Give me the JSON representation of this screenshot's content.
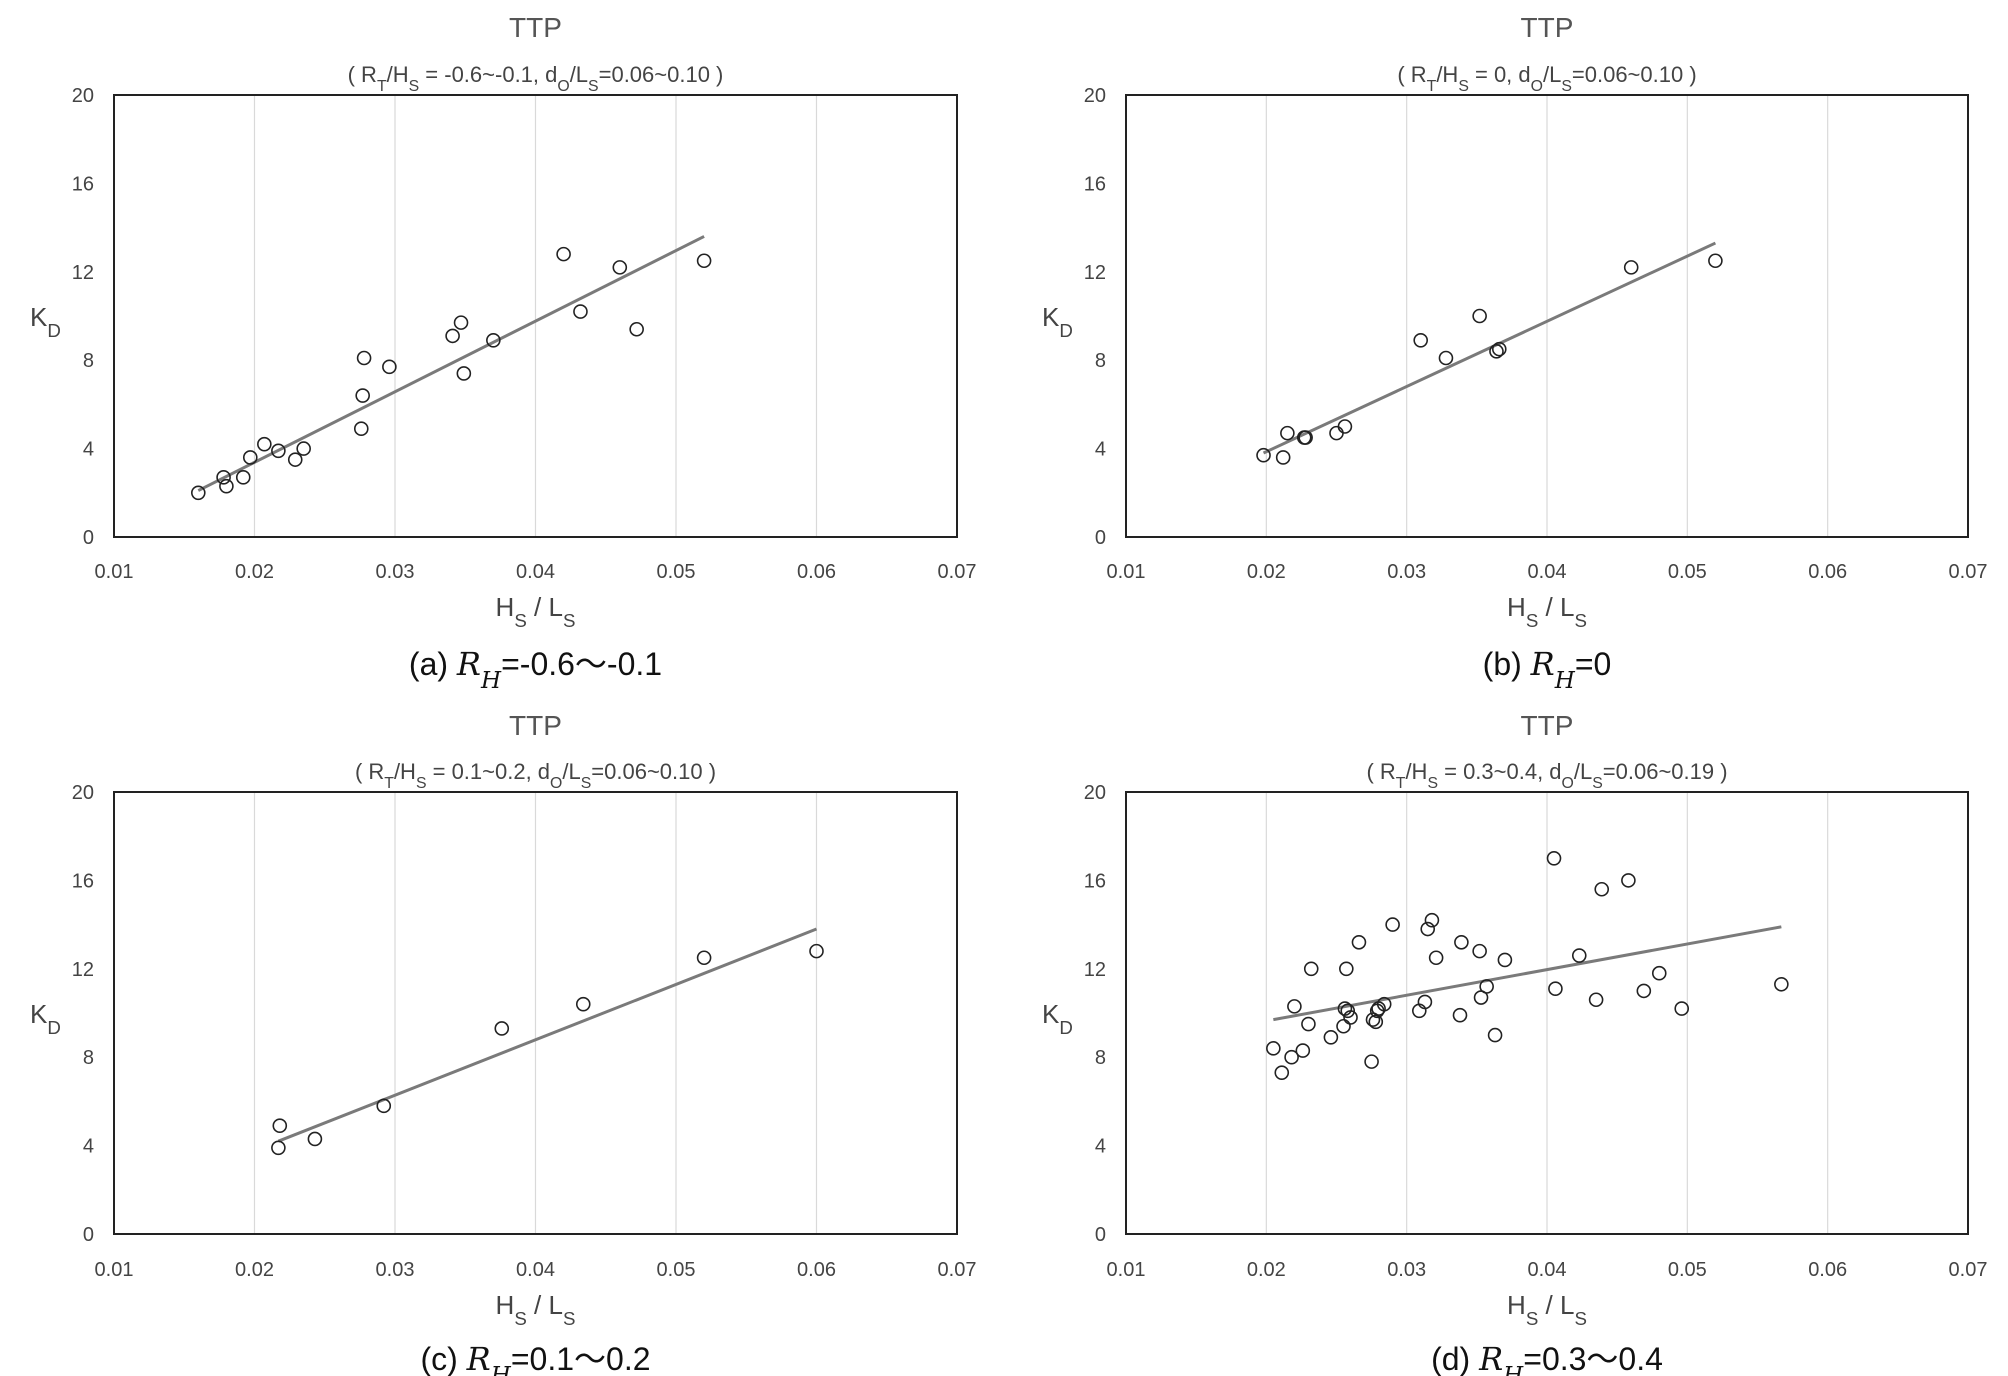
{
  "chart_data": [
    {
      "type": "scatter",
      "title": "TTP",
      "subtitle": {
        "open": "( R",
        "a_sub": "T",
        "b": "/H",
        "b_sub": "S",
        "c": " = -0.6~-0.1, d",
        "c_sub": "O",
        "d": "/L",
        "d_sub": "S",
        "e": "=0.06~0.10 )"
      },
      "xlabel": {
        "a": "H",
        "a_sub": "S",
        "b": " / L",
        "b_sub": "S"
      },
      "ylabel": {
        "a": "K",
        "a_sub": "D"
      },
      "caption": {
        "pre": "(a) ",
        "var": "R",
        "var_sub": "H",
        "post": "=-0.6～-0.1"
      },
      "xlim": [
        0.01,
        0.07
      ],
      "ylim": [
        0,
        20
      ],
      "x_ticks": [
        "0.01",
        "0.02",
        "0.03",
        "0.04",
        "0.05",
        "0.06",
        "0.07"
      ],
      "y_ticks": [
        "0",
        "4",
        "8",
        "12",
        "16",
        "20"
      ],
      "grid": "vertical",
      "points": [
        [
          0.016,
          2.0
        ],
        [
          0.0178,
          2.7
        ],
        [
          0.018,
          2.3
        ],
        [
          0.0192,
          2.7
        ],
        [
          0.0197,
          3.6
        ],
        [
          0.0207,
          4.2
        ],
        [
          0.0217,
          3.9
        ],
        [
          0.0229,
          3.5
        ],
        [
          0.0235,
          4.0
        ],
        [
          0.0276,
          4.9
        ],
        [
          0.0277,
          6.4
        ],
        [
          0.0278,
          8.1
        ],
        [
          0.0296,
          7.7
        ],
        [
          0.0341,
          9.1
        ],
        [
          0.0347,
          9.7
        ],
        [
          0.0349,
          7.4
        ],
        [
          0.037,
          8.9
        ],
        [
          0.042,
          12.8
        ],
        [
          0.0432,
          10.2
        ],
        [
          0.046,
          12.2
        ],
        [
          0.0472,
          9.4
        ],
        [
          0.052,
          12.5
        ]
      ],
      "trendline": [
        [
          0.016,
          2.1
        ],
        [
          0.052,
          13.6
        ]
      ]
    },
    {
      "type": "scatter",
      "title": "TTP",
      "subtitle": {
        "open": "( R",
        "a_sub": "T",
        "b": "/H",
        "b_sub": "S",
        "c": " = 0, d",
        "c_sub": "O",
        "d": "/L",
        "d_sub": "S",
        "e": "=0.06~0.10 )"
      },
      "xlabel": {
        "a": "H",
        "a_sub": "S",
        "b": " / L",
        "b_sub": "S"
      },
      "ylabel": {
        "a": "K",
        "a_sub": "D"
      },
      "caption": {
        "pre": "(b) ",
        "var": "R",
        "var_sub": "H",
        "post": "=0"
      },
      "xlim": [
        0.01,
        0.07
      ],
      "ylim": [
        0,
        20
      ],
      "x_ticks": [
        "0.01",
        "0.02",
        "0.03",
        "0.04",
        "0.05",
        "0.06",
        "0.07"
      ],
      "y_ticks": [
        "0",
        "4",
        "8",
        "12",
        "16",
        "20"
      ],
      "grid": "vertical",
      "points": [
        [
          0.0198,
          3.7
        ],
        [
          0.0212,
          3.6
        ],
        [
          0.0215,
          4.7
        ],
        [
          0.0227,
          4.5
        ],
        [
          0.0228,
          4.5
        ],
        [
          0.025,
          4.7
        ],
        [
          0.0256,
          5.0
        ],
        [
          0.031,
          8.9
        ],
        [
          0.0328,
          8.1
        ],
        [
          0.0352,
          10.0
        ],
        [
          0.0364,
          8.4
        ],
        [
          0.0366,
          8.5
        ],
        [
          0.046,
          12.2
        ],
        [
          0.052,
          12.5
        ]
      ],
      "trendline": [
        [
          0.0198,
          3.8
        ],
        [
          0.052,
          13.3
        ]
      ]
    },
    {
      "type": "scatter",
      "title": "TTP",
      "subtitle": {
        "open": "( R",
        "a_sub": "T",
        "b": "/H",
        "b_sub": "S",
        "c": " = 0.1~0.2, d",
        "c_sub": "O",
        "d": "/L",
        "d_sub": "S",
        "e": "=0.06~0.10 )"
      },
      "xlabel": {
        "a": "H",
        "a_sub": "S",
        "b": " / L",
        "b_sub": "S"
      },
      "ylabel": {
        "a": "K",
        "a_sub": "D"
      },
      "caption": {
        "pre": "(c) ",
        "var": "R",
        "var_sub": "H",
        "post": "=0.1～0.2"
      },
      "xlim": [
        0.01,
        0.07
      ],
      "ylim": [
        0,
        20
      ],
      "x_ticks": [
        "0.01",
        "0.02",
        "0.03",
        "0.04",
        "0.05",
        "0.06",
        "0.07"
      ],
      "y_ticks": [
        "0",
        "4",
        "8",
        "12",
        "16",
        "20"
      ],
      "grid": "vertical",
      "points": [
        [
          0.0217,
          3.9
        ],
        [
          0.0218,
          4.9
        ],
        [
          0.0243,
          4.3
        ],
        [
          0.0292,
          5.8
        ],
        [
          0.0376,
          9.3
        ],
        [
          0.0434,
          10.4
        ],
        [
          0.052,
          12.5
        ],
        [
          0.06,
          12.8
        ]
      ],
      "trendline": [
        [
          0.0217,
          4.2
        ],
        [
          0.06,
          13.8
        ]
      ]
    },
    {
      "type": "scatter",
      "title": "TTP",
      "subtitle": {
        "open": "( R",
        "a_sub": "T",
        "b": "/H",
        "b_sub": "S",
        "c": " = 0.3~0.4, d",
        "c_sub": "O",
        "d": "/L",
        "d_sub": "S",
        "e": "=0.06~0.19 )"
      },
      "xlabel": {
        "a": "H",
        "a_sub": "S",
        "b": " / L",
        "b_sub": "S"
      },
      "ylabel": {
        "a": "K",
        "a_sub": "D"
      },
      "caption": {
        "pre": "(d) ",
        "var": "R",
        "var_sub": "H",
        "post": "=0.3～0.4"
      },
      "xlim": [
        0.01,
        0.07
      ],
      "ylim": [
        0,
        20
      ],
      "x_ticks": [
        "0.01",
        "0.02",
        "0.03",
        "0.04",
        "0.05",
        "0.06",
        "0.07"
      ],
      "y_ticks": [
        "0",
        "4",
        "8",
        "12",
        "16",
        "20"
      ],
      "grid": "vertical",
      "points": [
        [
          0.0205,
          8.4
        ],
        [
          0.0211,
          7.3
        ],
        [
          0.0218,
          8.0
        ],
        [
          0.022,
          10.3
        ],
        [
          0.0226,
          8.3
        ],
        [
          0.023,
          9.5
        ],
        [
          0.0232,
          12.0
        ],
        [
          0.0246,
          8.9
        ],
        [
          0.0255,
          9.4
        ],
        [
          0.0256,
          10.2
        ],
        [
          0.0257,
          12.0
        ],
        [
          0.0258,
          10.1
        ],
        [
          0.026,
          9.8
        ],
        [
          0.0266,
          13.2
        ],
        [
          0.0275,
          7.8
        ],
        [
          0.0276,
          9.7
        ],
        [
          0.0278,
          9.6
        ],
        [
          0.0279,
          10.1
        ],
        [
          0.028,
          10.2
        ],
        [
          0.0284,
          10.4
        ],
        [
          0.029,
          14.0
        ],
        [
          0.0309,
          10.1
        ],
        [
          0.0313,
          10.5
        ],
        [
          0.0315,
          13.8
        ],
        [
          0.0318,
          14.2
        ],
        [
          0.0321,
          12.5
        ],
        [
          0.0338,
          9.9
        ],
        [
          0.0339,
          13.2
        ],
        [
          0.0352,
          12.8
        ],
        [
          0.0353,
          10.7
        ],
        [
          0.0357,
          11.2
        ],
        [
          0.0363,
          9.0
        ],
        [
          0.037,
          12.4
        ],
        [
          0.0405,
          17.0
        ],
        [
          0.0406,
          11.1
        ],
        [
          0.0423,
          12.6
        ],
        [
          0.0435,
          10.6
        ],
        [
          0.0439,
          15.6
        ],
        [
          0.0458,
          16.0
        ],
        [
          0.0469,
          11.0
        ],
        [
          0.048,
          11.8
        ],
        [
          0.0496,
          10.2
        ],
        [
          0.0567,
          11.3
        ]
      ],
      "trendline": [
        [
          0.0205,
          9.7
        ],
        [
          0.0567,
          13.9
        ]
      ]
    }
  ]
}
